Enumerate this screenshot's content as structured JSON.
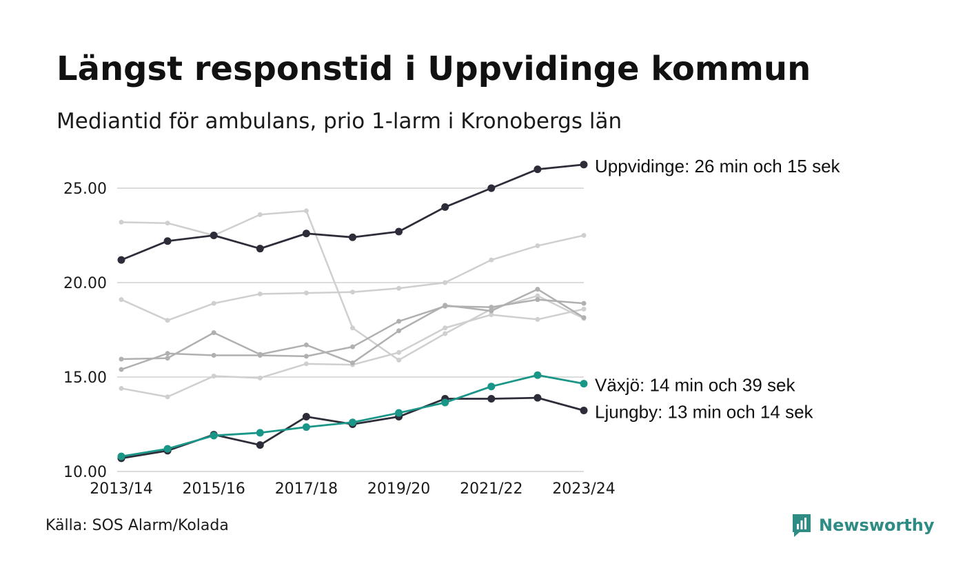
{
  "title": "Längst responstid i Uppvidinge kommun",
  "subtitle": "Mediantid för ambulans, prio 1-larm i Kronobergs län",
  "source": "Källa: SOS Alarm/Kolada",
  "logo": {
    "text": "Newsworthy",
    "icon": "newsworthy-logo-icon",
    "color": "#2e8c85"
  },
  "colors": {
    "highlight": "#2d2d3a",
    "accent": "#1a9688",
    "gray_light": "#cfcfcf",
    "gray_mid": "#b0b0b0",
    "grid": "#dcdcdc"
  },
  "chart_data": {
    "type": "line",
    "title": "Längst responstid i Uppvidinge kommun",
    "subtitle": "Mediantid för ambulans, prio 1-larm i Kronobergs län",
    "xlabel": "",
    "ylabel": "",
    "x": [
      "2013/14",
      "2014/15",
      "2015/16",
      "2016/17",
      "2017/18",
      "2018/19",
      "2019/20",
      "2020/21",
      "2021/22",
      "2022/23",
      "2023/24"
    ],
    "x_tick_labels": [
      "2013/14",
      "2015/16",
      "2017/18",
      "2019/20",
      "2021/22",
      "2023/24"
    ],
    "y_ticks": [
      "10.00",
      "15.00",
      "20.00",
      "25.00"
    ],
    "ylim": [
      10,
      26.5
    ],
    "grid": "horizontal",
    "series": [
      {
        "name": "Uppvidinge",
        "style": "highlight",
        "label": "Uppvidinge: 26 min och 15 sek",
        "values": [
          21.2,
          22.2,
          22.5,
          21.8,
          22.6,
          22.4,
          22.7,
          24.0,
          25.0,
          26.0,
          26.25
        ]
      },
      {
        "name": "Växjö",
        "style": "accent",
        "label": "Växjö: 14 min och 39 sek",
        "values": [
          10.8,
          11.2,
          11.9,
          12.05,
          12.35,
          12.6,
          13.1,
          13.65,
          14.5,
          15.1,
          14.65
        ]
      },
      {
        "name": "Ljungby",
        "style": "highlight",
        "label": "Ljungby: 13 min och 14 sek",
        "values": [
          10.7,
          11.1,
          11.95,
          11.4,
          12.9,
          12.5,
          12.9,
          13.85,
          13.85,
          13.9,
          13.23
        ]
      },
      {
        "style": "gray_light",
        "values": [
          23.2,
          23.15,
          22.5,
          23.6,
          23.8,
          17.6,
          15.9,
          17.3,
          18.6,
          19.3,
          18.1
        ]
      },
      {
        "style": "gray_light",
        "values": [
          19.1,
          18.0,
          18.9,
          19.4,
          19.45,
          19.5,
          19.7,
          20.0,
          21.2,
          21.95,
          22.5
        ]
      },
      {
        "style": "gray_light",
        "values": [
          14.4,
          13.95,
          15.05,
          14.95,
          15.7,
          15.65,
          16.3,
          17.6,
          18.3,
          18.05,
          18.6
        ]
      },
      {
        "style": "gray_mid",
        "values": [
          15.95,
          16.0,
          17.35,
          16.2,
          16.7,
          15.75,
          17.45,
          18.8,
          18.5,
          19.65,
          18.15
        ]
      },
      {
        "style": "gray_mid",
        "values": [
          15.4,
          16.25,
          16.15,
          16.15,
          16.1,
          16.6,
          17.95,
          18.75,
          18.7,
          19.1,
          18.9
        ]
      }
    ]
  }
}
